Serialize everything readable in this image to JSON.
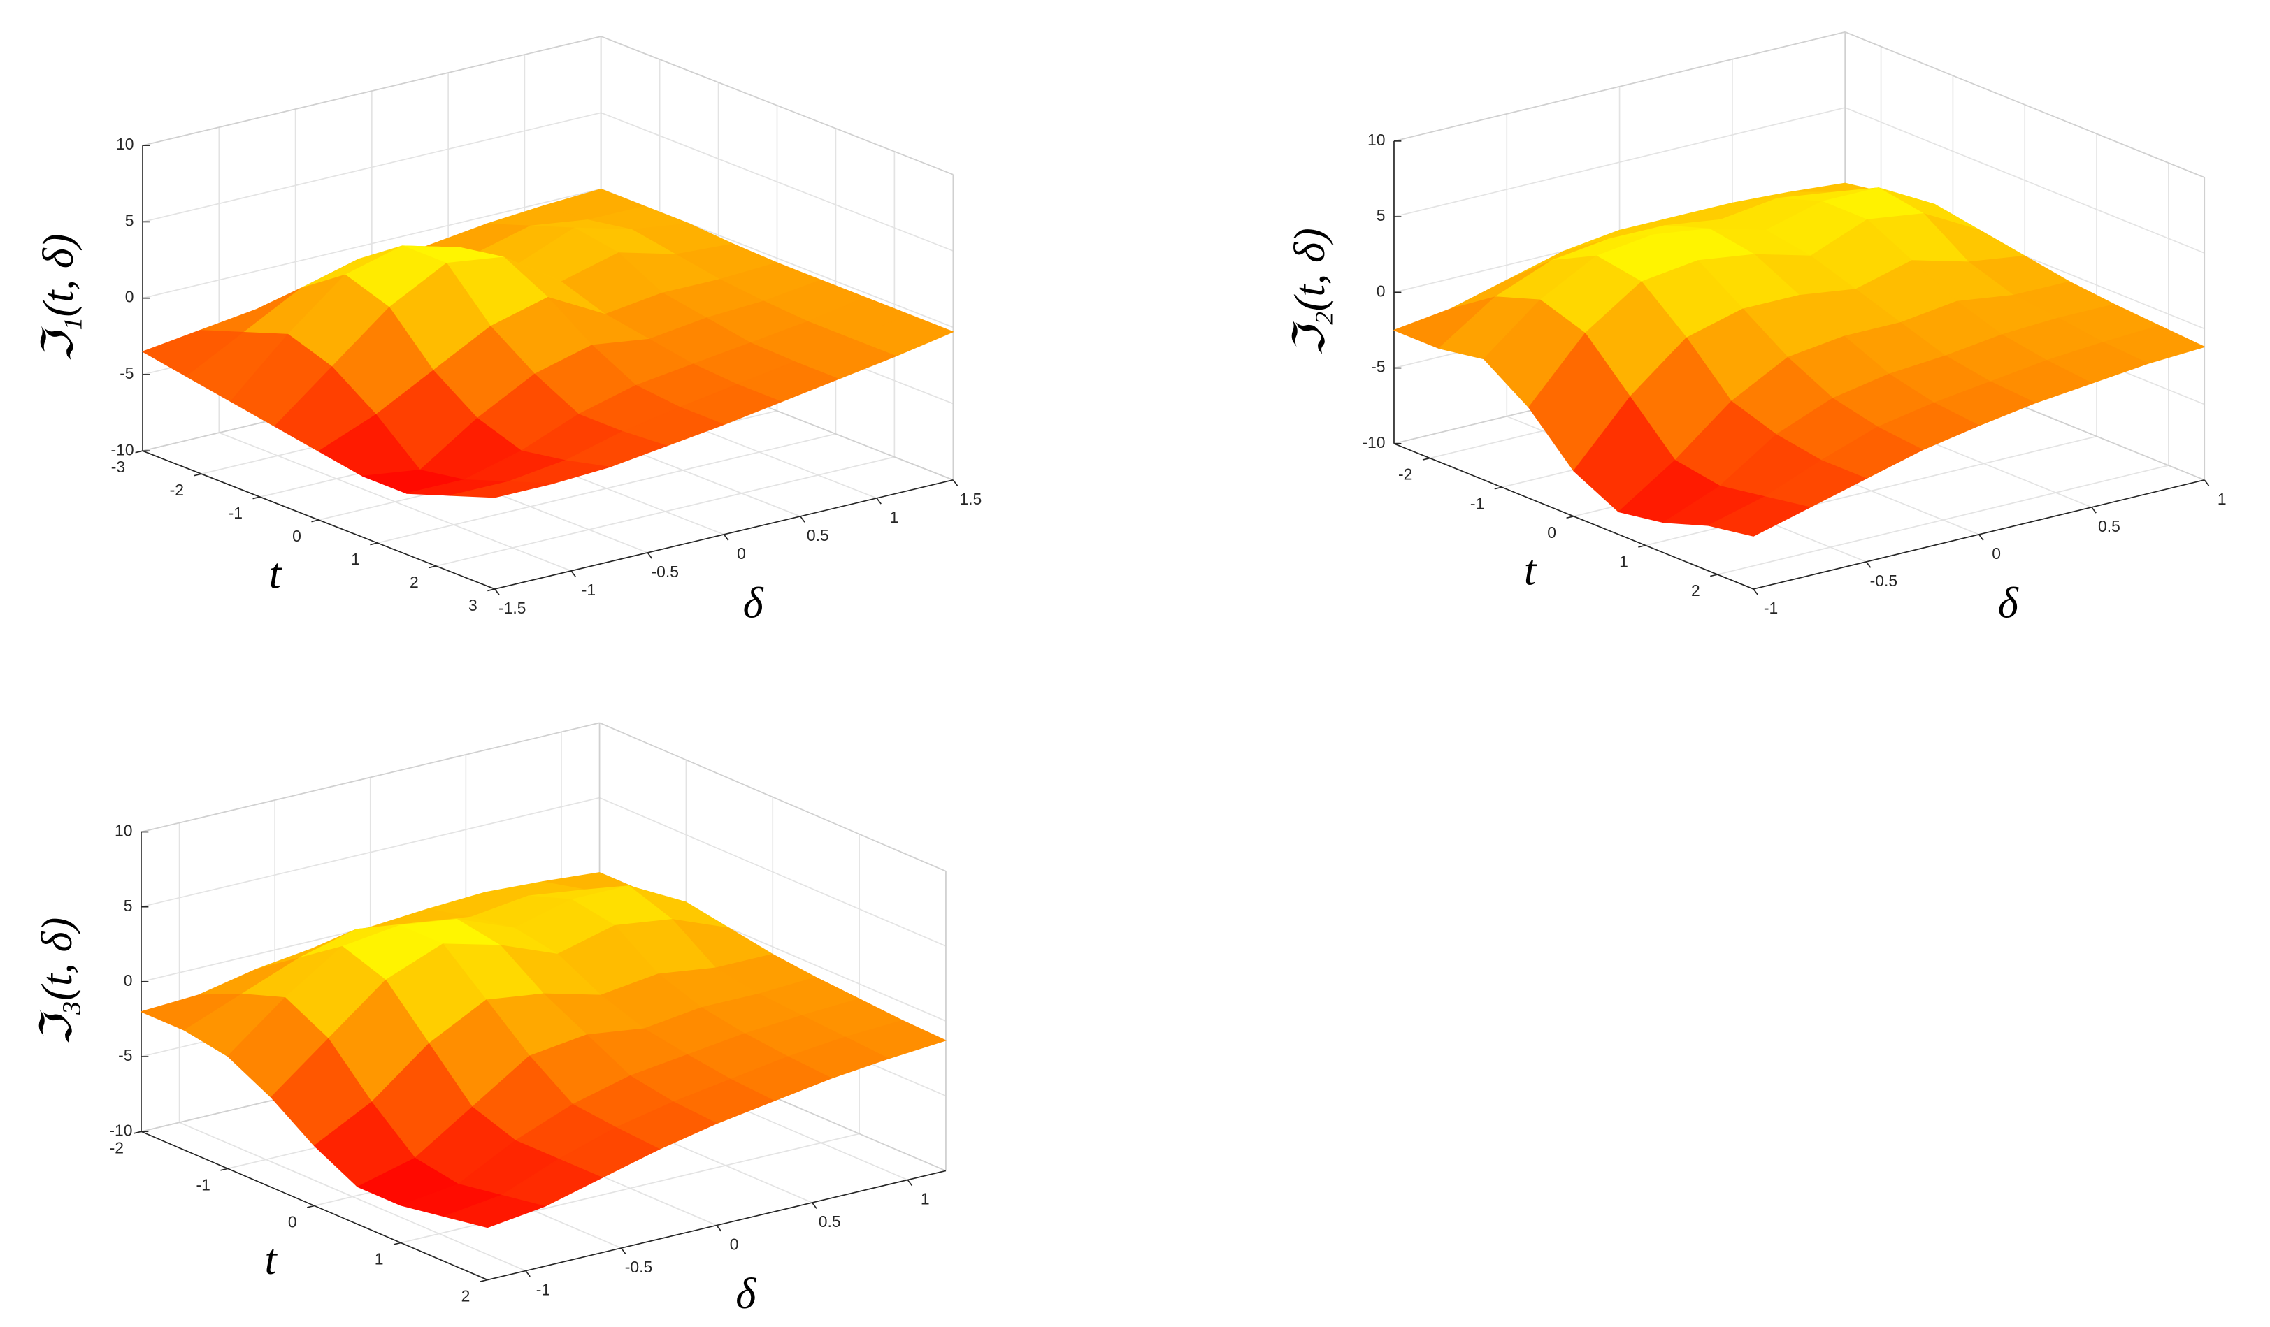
{
  "chart_data": [
    {
      "type": "surface",
      "colormap": "autumn",
      "xlabel": "t",
      "ylabel": "δ",
      "zlabel": "ℑ₁(t, δ)",
      "t": [
        -3,
        -2.25,
        -1.5,
        -0.75,
        0,
        0.75,
        1.5,
        2.25,
        3
      ],
      "delta": [
        -1.5,
        -1.125,
        -0.75,
        -0.375,
        0,
        0.375,
        0.75,
        1.125,
        1.5
      ],
      "z": [
        [
          -3.5,
          -3,
          -2.5,
          -2,
          -1.5,
          -1,
          -0.5,
          -0.2,
          0
        ],
        [
          -4,
          -2,
          0,
          1,
          0.5,
          -0.5,
          0.5,
          0,
          0
        ],
        [
          -4.5,
          -1,
          2,
          3,
          2,
          0,
          1.5,
          0.5,
          0
        ],
        [
          -5,
          -2,
          1,
          3,
          2.5,
          0,
          1,
          0,
          -0.2
        ],
        [
          -5.5,
          -4,
          -2,
          0,
          1,
          -1,
          -0.5,
          -0.5,
          -0.3
        ],
        [
          -6,
          -6.5,
          -4,
          -2,
          -1,
          -1.5,
          -1,
          -0.8,
          -0.3
        ],
        [
          -6,
          -6,
          -5,
          -3.5,
          -2.5,
          -2,
          -1.5,
          -1,
          -0.3
        ],
        [
          -5,
          -5,
          -4.5,
          -3.5,
          -2.8,
          -2.2,
          -1.6,
          -1,
          -0.3
        ],
        [
          -4,
          -4,
          -3.8,
          -3.3,
          -2.8,
          -2.2,
          -1.6,
          -1,
          -0.3
        ]
      ],
      "xlim": [
        -3,
        3
      ],
      "ylim": [
        -1.5,
        1.5
      ],
      "zlim": [
        -10,
        10
      ],
      "xticks": [
        -3,
        -2,
        -1,
        0,
        1,
        2,
        3
      ],
      "yticks": [
        -1.5,
        -1,
        -0.5,
        0,
        0.5,
        1,
        1.5
      ],
      "zticks": [
        -10,
        -5,
        0,
        5,
        10
      ],
      "grid": true
    },
    {
      "type": "surface",
      "colormap": "autumn",
      "xlabel": "t",
      "ylabel": "δ",
      "zlabel": "ℑ₂(t, δ)",
      "t": [
        -2.5,
        -1.875,
        -1.25,
        -0.625,
        0,
        0.625,
        1.25,
        1.875,
        2.5
      ],
      "delta": [
        -1,
        -0.75,
        -0.5,
        -0.25,
        0,
        0.25,
        0.5,
        0.75,
        1
      ],
      "z": [
        [
          -2.5,
          -2,
          -1,
          0,
          0.5,
          0.5,
          0.5,
          0.3,
          0
        ],
        [
          -2.5,
          0,
          1.5,
          2,
          2,
          1.5,
          2,
          1.5,
          0.5
        ],
        [
          -2,
          1,
          3,
          3.5,
          3,
          2,
          3,
          3,
          1
        ],
        [
          -4,
          0,
          2.5,
          3,
          2.5,
          1.5,
          3,
          2.5,
          0.5
        ],
        [
          -7,
          -3,
          0,
          1,
          1,
          0.5,
          1.5,
          0.5,
          0
        ],
        [
          -8.5,
          -6,
          -3,
          -1,
          -0.5,
          -0.5,
          0,
          -0.5,
          -0.5
        ],
        [
          -8,
          -6.5,
          -4,
          -2.5,
          -1.8,
          -1.5,
          -1,
          -0.8,
          -0.8
        ],
        [
          -7,
          -6,
          -4.5,
          -3.2,
          -2.5,
          -2,
          -1.5,
          -1.2,
          -1
        ],
        [
          -6.5,
          -5.5,
          -4.5,
          -3.5,
          -2.8,
          -2.2,
          -1.8,
          -1.4,
          -1.2
        ]
      ],
      "xlim": [
        -2.5,
        2.5
      ],
      "ylim": [
        -1,
        1
      ],
      "zlim": [
        -10,
        10
      ],
      "xticks": [
        -2,
        -1,
        0,
        1,
        2
      ],
      "yticks": [
        -1,
        -0.5,
        0,
        0.5,
        1
      ],
      "zticks": [
        -10,
        -5,
        0,
        5,
        10
      ],
      "grid": true
    },
    {
      "type": "surface",
      "colormap": "autumn",
      "xlabel": "t",
      "ylabel": "δ",
      "zlabel": "ℑ₃(t, δ)",
      "t": [
        -2,
        -1.5,
        -1,
        -0.5,
        0,
        0.5,
        1,
        1.5,
        2
      ],
      "delta": [
        -1.2,
        -0.9,
        -0.6,
        -0.3,
        0,
        0.3,
        0.6,
        0.9,
        1.2
      ],
      "z": [
        [
          -2,
          -1.8,
          -1,
          -0.5,
          0,
          0.3,
          0.5,
          0.3,
          0
        ],
        [
          -2,
          -0.5,
          1,
          2,
          1.5,
          1,
          1.5,
          1,
          0
        ],
        [
          -2.5,
          0.5,
          3,
          3.5,
          3,
          1.5,
          2.5,
          2.5,
          0.5
        ],
        [
          -4,
          -1,
          2,
          3.5,
          2.5,
          1,
          2,
          1.5,
          0
        ],
        [
          -6,
          -4,
          -1,
          1,
          0.5,
          -0.5,
          0,
          -0.5,
          -0.5
        ],
        [
          -7.5,
          -6.5,
          -4,
          -1.5,
          -1,
          -1.5,
          -1,
          -1,
          -0.8
        ],
        [
          -7.5,
          -7,
          -5,
          -3.5,
          -2.5,
          -2,
          -1.5,
          -1.2,
          -1
        ],
        [
          -7,
          -6.5,
          -5,
          -3.8,
          -3,
          -2.4,
          -1.8,
          -1.4,
          -1.2
        ],
        [
          -6.5,
          -6,
          -5,
          -4,
          -3.2,
          -2.6,
          -2,
          -1.6,
          -1.3
        ]
      ],
      "xlim": [
        -2,
        2
      ],
      "ylim": [
        -1.2,
        1.2
      ],
      "zlim": [
        -10,
        10
      ],
      "xticks": [
        -2,
        -1,
        0,
        1,
        2
      ],
      "yticks": [
        -1,
        -0.5,
        0,
        0.5,
        1
      ],
      "zticks": [
        -10,
        -5,
        0,
        5,
        10
      ],
      "grid": true
    }
  ]
}
